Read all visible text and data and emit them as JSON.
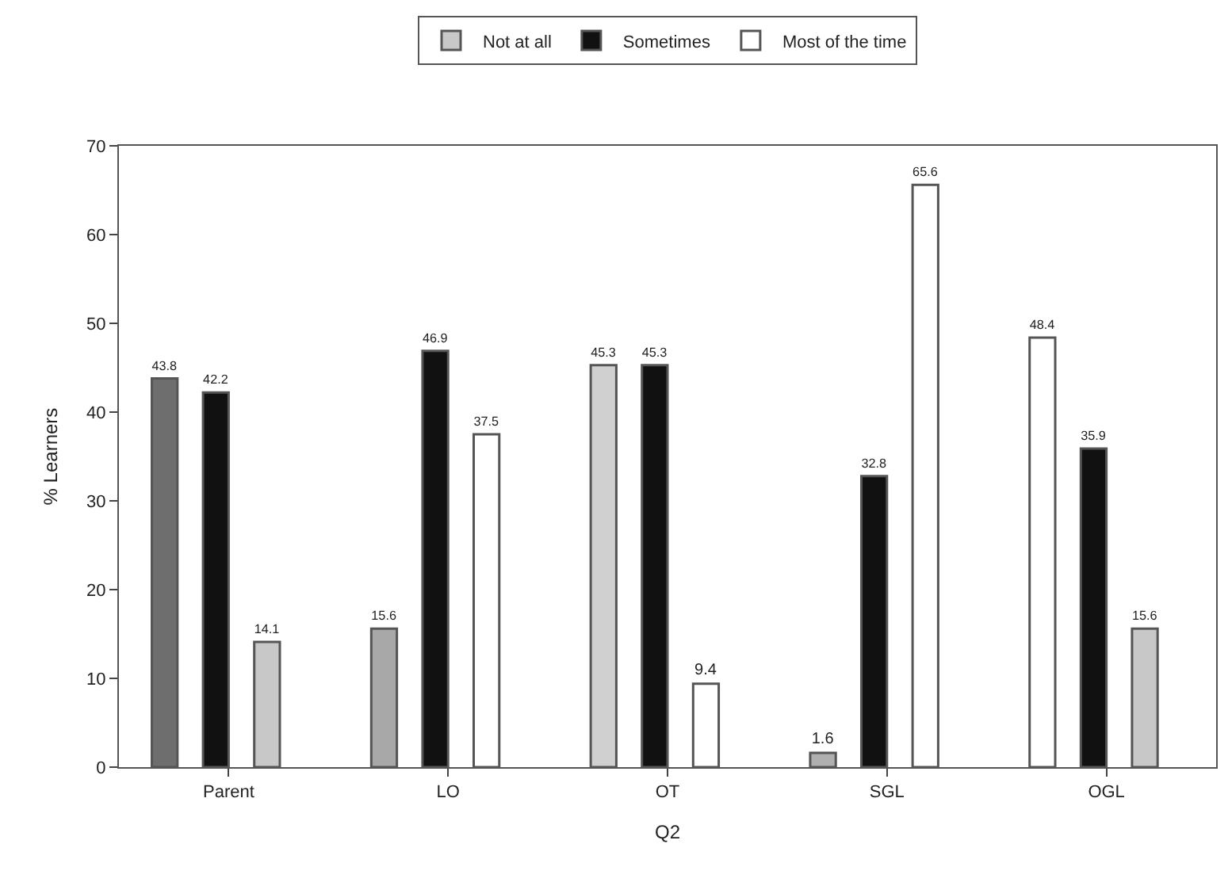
{
  "chart_data": {
    "type": "bar",
    "xlabel": "Q2",
    "ylabel": "% Learners",
    "categories": [
      "Parent",
      "LO",
      "OT",
      "SGL",
      "OGL"
    ],
    "series": [
      {
        "name": "Not at all",
        "color": "#c8c8c8",
        "values": [
          43.8,
          15.6,
          45.3,
          1.6,
          48.4
        ],
        "colors": [
          "#6e6e6e",
          "#a8a8a8",
          "#d0d0d0",
          "#b0b0b0",
          "#ffffff"
        ]
      },
      {
        "name": "Sometimes",
        "color": "#111111",
        "values": [
          42.2,
          46.9,
          45.3,
          32.8,
          35.9
        ],
        "colors": [
          "#111111",
          "#111111",
          "#111111",
          "#111111",
          "#111111"
        ]
      },
      {
        "name": "Most of the time",
        "color": "#ffffff",
        "values": [
          14.1,
          37.5,
          9.4,
          65.6,
          15.6
        ],
        "colors": [
          "#c8c8c8",
          "#ffffff",
          "#ffffff",
          "#ffffff",
          "#c8c8c8"
        ]
      }
    ],
    "ylim": [
      0,
      70
    ],
    "yticks": [
      0,
      10,
      20,
      30,
      40,
      50,
      60,
      70
    ],
    "data_labels": true,
    "grid": false,
    "legend": "top"
  }
}
